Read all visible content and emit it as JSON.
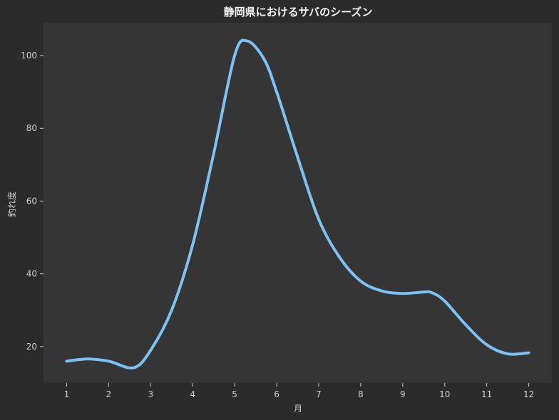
{
  "chart_data": {
    "type": "line",
    "title": "静岡県におけるサバのシーズン",
    "xlabel": "月",
    "ylabel": "釣れ度",
    "x": [
      1,
      1.5,
      2,
      2.6,
      3,
      3.5,
      4,
      4.5,
      5,
      5.3,
      5.7,
      6,
      6.5,
      7,
      7.5,
      8,
      8.5,
      9,
      9.5,
      9.7,
      10,
      10.5,
      11,
      11.5,
      12
    ],
    "series": [
      {
        "values": [
          16,
          16.6,
          16,
          14.2,
          19,
          30,
          48,
          73,
          100,
          104,
          99,
          90,
          72,
          55,
          44.5,
          38,
          35.3,
          34.6,
          35,
          34.8,
          32.5,
          26,
          20.5,
          18,
          18.3
        ],
        "color": "#7cc2f2"
      }
    ],
    "xticks": [
      1,
      2,
      3,
      4,
      5,
      6,
      7,
      8,
      9,
      10,
      11,
      12
    ],
    "yticks": [
      20,
      40,
      60,
      80,
      100
    ],
    "xlim": [
      0.45,
      12.55
    ],
    "ylim": [
      10,
      109
    ],
    "grid": false,
    "colors": {
      "figure_bg": "#2b2b2b",
      "plot_bg": "#353535",
      "text": "#cfcfcf",
      "title": "#f2f2f2"
    }
  }
}
